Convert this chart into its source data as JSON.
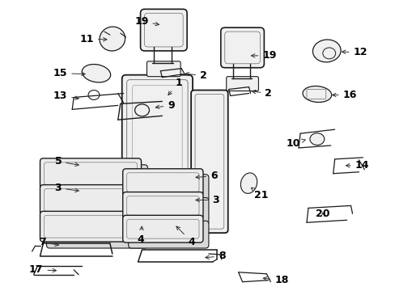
{
  "background_color": "#ffffff",
  "fig_width": 4.89,
  "fig_height": 3.6,
  "dpi": 100,
  "line_color": "#1a1a1a",
  "label_color": "#000000",
  "font_size": 7.5,
  "label_font_size": 9,
  "parts_font_size": 8
}
